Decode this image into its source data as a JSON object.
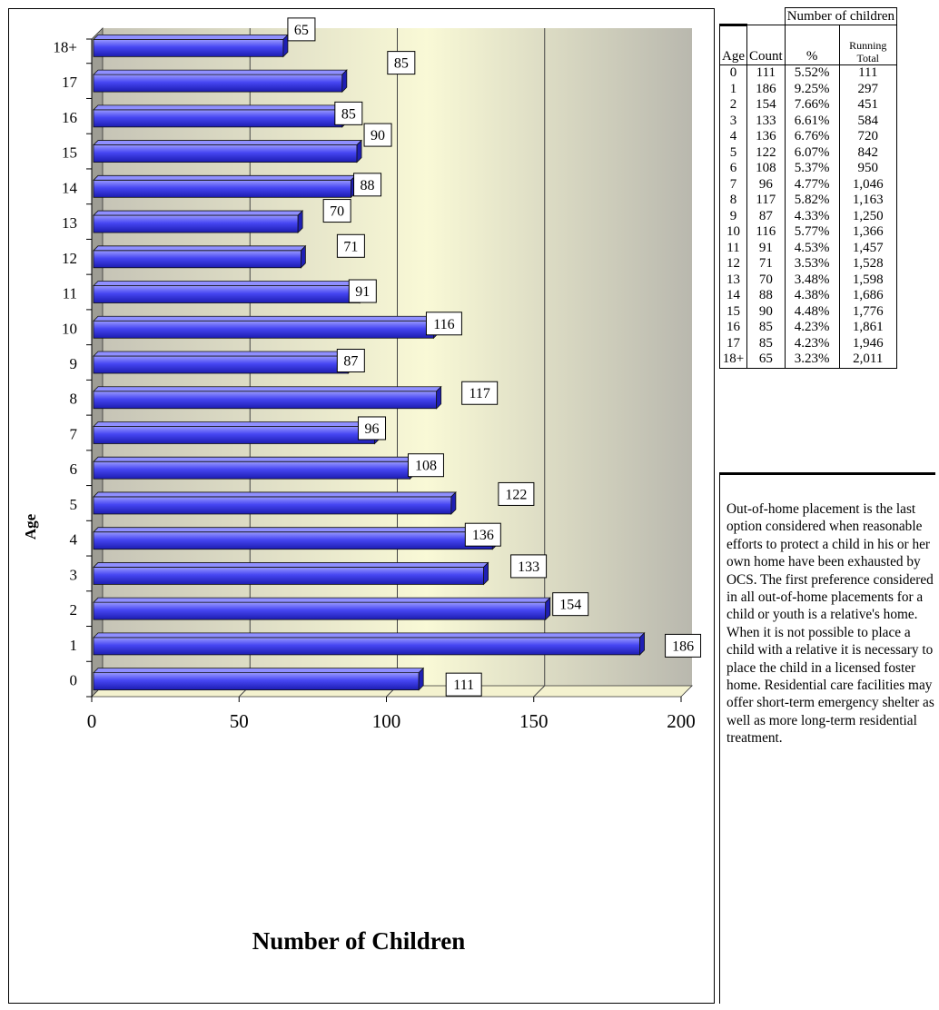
{
  "chart_data": {
    "type": "bar",
    "orientation": "horizontal",
    "categories": [
      "0",
      "1",
      "2",
      "3",
      "4",
      "5",
      "6",
      "7",
      "8",
      "9",
      "10",
      "11",
      "12",
      "13",
      "14",
      "15",
      "16",
      "17",
      "18+"
    ],
    "values": [
      111,
      186,
      154,
      133,
      136,
      122,
      108,
      96,
      117,
      87,
      116,
      91,
      71,
      70,
      88,
      90,
      85,
      85,
      65
    ],
    "data_labels": [
      "111",
      "186",
      "154",
      "133",
      "136",
      "122",
      "108",
      "96",
      "117",
      "87",
      "116",
      "91",
      "71",
      "70",
      "88",
      "90",
      "85",
      "85",
      "65"
    ],
    "xlabel": "Number of Children",
    "ylabel": "Age",
    "xlim": [
      0,
      200
    ],
    "x_ticks": [
      "0",
      "50",
      "100",
      "150",
      "200"
    ],
    "colors": {
      "bar": "#3a3aee",
      "bar_top": "#8f8fff",
      "bar_side": "#1f1fb4",
      "wall_left": "#c8c6b8",
      "wall_right": "#b8b7ad",
      "wall_center": "#f9f9d6",
      "floor": "#f4f2cf"
    }
  },
  "table": {
    "group_header": "Number of children",
    "columns": [
      "Age",
      "Count",
      "%",
      "Running",
      "Total"
    ],
    "rows": [
      [
        "0",
        "111",
        "5.52%",
        "111"
      ],
      [
        "1",
        "186",
        "9.25%",
        "297"
      ],
      [
        "2",
        "154",
        "7.66%",
        "451"
      ],
      [
        "3",
        "133",
        "6.61%",
        "584"
      ],
      [
        "4",
        "136",
        "6.76%",
        "720"
      ],
      [
        "5",
        "122",
        "6.07%",
        "842"
      ],
      [
        "6",
        "108",
        "5.37%",
        "950"
      ],
      [
        "7",
        "96",
        "4.77%",
        "1,046"
      ],
      [
        "8",
        "117",
        "5.82%",
        "1,163"
      ],
      [
        "9",
        "87",
        "4.33%",
        "1,250"
      ],
      [
        "10",
        "116",
        "5.77%",
        "1,366"
      ],
      [
        "11",
        "91",
        "4.53%",
        "1,457"
      ],
      [
        "12",
        "71",
        "3.53%",
        "1,528"
      ],
      [
        "13",
        "70",
        "3.48%",
        "1,598"
      ],
      [
        "14",
        "88",
        "4.38%",
        "1,686"
      ],
      [
        "15",
        "90",
        "4.48%",
        "1,776"
      ],
      [
        "16",
        "85",
        "4.23%",
        "1,861"
      ],
      [
        "17",
        "85",
        "4.23%",
        "1,946"
      ],
      [
        "18+",
        "65",
        "3.23%",
        "2,011"
      ]
    ]
  },
  "note": "Out-of-home placement is the last option considered when reasonable efforts to protect a child in his or her own home have been exhausted by OCS. The first preference considered in all out-of-home placements for a child or youth is a relative's home.  When it is not possible to place a child with a relative it is necessary to place the child in a licensed foster home. Residential care facilities may offer short-term emergency shelter as well as more long-term residential treatment."
}
